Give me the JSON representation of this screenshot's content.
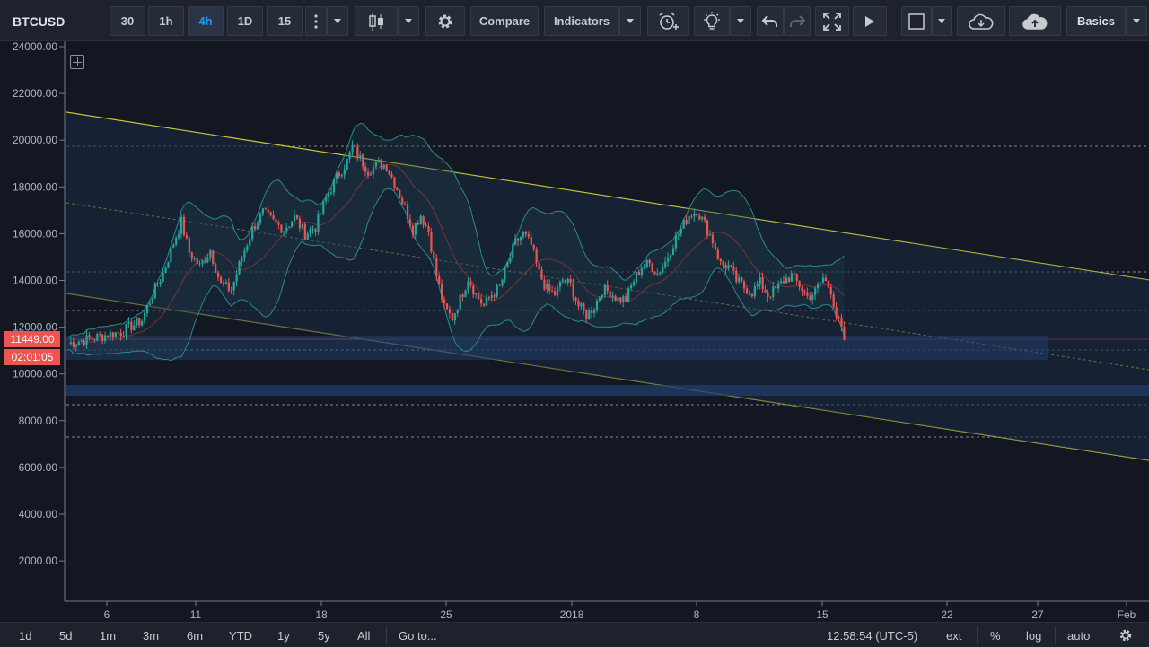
{
  "toolbar": {
    "symbol": "BTCUSD",
    "intervals": [
      "30",
      "1h",
      "4h",
      "1D",
      "15"
    ],
    "active_interval": "4h",
    "compare_label": "Compare",
    "indicators_label": "Indicators",
    "layout_label": "Basics",
    "icons": [
      "more-vertical-icon",
      "candles-icon",
      "gear-icon",
      "alarm-add-icon",
      "lightbulb-icon",
      "undo-icon",
      "redo-icon",
      "fullscreen-icon",
      "play-icon",
      "rectangle-icon",
      "cloud-download-icon",
      "cloud-upload-icon"
    ]
  },
  "price_axis": {
    "ticks": [
      "24000.00",
      "22000.00",
      "20000.00",
      "18000.00",
      "16000.00",
      "14000.00",
      "12000.00",
      "10000.00",
      "8000.00",
      "6000.00",
      "4000.00",
      "2000.00"
    ]
  },
  "last_price": {
    "value": "11449.00",
    "countdown": "02:01:05",
    "color": "#ef5350"
  },
  "time_axis": {
    "ticks": [
      "6",
      "11",
      "18",
      "25",
      "2018",
      "8",
      "15",
      "22",
      "27",
      "Feb"
    ]
  },
  "bottombar": {
    "ranges": [
      "1d",
      "5d",
      "1m",
      "3m",
      "6m",
      "YTD",
      "1y",
      "5y",
      "All"
    ],
    "goto_label": "Go to...",
    "clock": "12:58:54 (UTC-5)",
    "ext_label": "ext",
    "percent_label": "%",
    "log_label": "log",
    "auto_label": "auto"
  },
  "chart_data": {
    "type": "candlestick",
    "symbol": "BTCUSD",
    "y_range": [
      0,
      24500
    ],
    "up_color": "#26a69a",
    "down_color": "#ef5350",
    "trend_color": "#c8c83c",
    "band_color": "#2a8a8a",
    "close_path": [
      [
        0,
        11300
      ],
      [
        8,
        11500
      ],
      [
        20,
        11800
      ],
      [
        28,
        12300
      ],
      [
        32,
        13400
      ],
      [
        36,
        14300
      ],
      [
        40,
        15600
      ],
      [
        43,
        16500
      ],
      [
        46,
        15200
      ],
      [
        50,
        14600
      ],
      [
        54,
        15300
      ],
      [
        58,
        13800
      ],
      [
        62,
        13600
      ],
      [
        66,
        15000
      ],
      [
        70,
        16200
      ],
      [
        74,
        16900
      ],
      [
        78,
        16500
      ],
      [
        82,
        16200
      ],
      [
        86,
        16700
      ],
      [
        90,
        16000
      ],
      [
        94,
        16300
      ],
      [
        98,
        17500
      ],
      [
        102,
        18400
      ],
      [
        106,
        19100
      ],
      [
        108,
        19700
      ],
      [
        111,
        19200
      ],
      [
        114,
        18700
      ],
      [
        118,
        19000
      ],
      [
        121,
        18900
      ],
      [
        124,
        18200
      ],
      [
        128,
        17100
      ],
      [
        131,
        16200
      ],
      [
        134,
        16800
      ],
      [
        137,
        16100
      ],
      [
        140,
        14200
      ],
      [
        143,
        12800
      ],
      [
        146,
        12400
      ],
      [
        149,
        13200
      ],
      [
        152,
        14100
      ],
      [
        155,
        13400
      ],
      [
        158,
        12900
      ],
      [
        161,
        13400
      ],
      [
        164,
        13700
      ],
      [
        167,
        14700
      ],
      [
        170,
        15600
      ],
      [
        173,
        16000
      ],
      [
        176,
        15500
      ],
      [
        179,
        14300
      ],
      [
        182,
        13600
      ],
      [
        185,
        13400
      ],
      [
        188,
        14000
      ],
      [
        191,
        13800
      ],
      [
        194,
        12900
      ],
      [
        197,
        12500
      ],
      [
        200,
        12900
      ],
      [
        203,
        13600
      ],
      [
        206,
        13500
      ],
      [
        209,
        13200
      ],
      [
        212,
        13200
      ],
      [
        215,
        14000
      ],
      [
        218,
        14600
      ],
      [
        221,
        14700
      ],
      [
        224,
        14300
      ],
      [
        227,
        14800
      ],
      [
        230,
        15600
      ],
      [
        233,
        16200
      ],
      [
        236,
        16800
      ],
      [
        239,
        17000
      ],
      [
        242,
        16400
      ],
      [
        245,
        15700
      ],
      [
        248,
        14700
      ],
      [
        251,
        14600
      ],
      [
        254,
        14000
      ],
      [
        257,
        13700
      ],
      [
        260,
        13500
      ],
      [
        263,
        13900
      ],
      [
        266,
        13400
      ],
      [
        269,
        13600
      ],
      [
        272,
        14000
      ],
      [
        275,
        14200
      ],
      [
        278,
        13800
      ],
      [
        281,
        13300
      ],
      [
        284,
        13500
      ],
      [
        287,
        14100
      ],
      [
        290,
        13600
      ],
      [
        292,
        12500
      ],
      [
        294,
        11900
      ],
      [
        295,
        11449
      ]
    ]
  }
}
